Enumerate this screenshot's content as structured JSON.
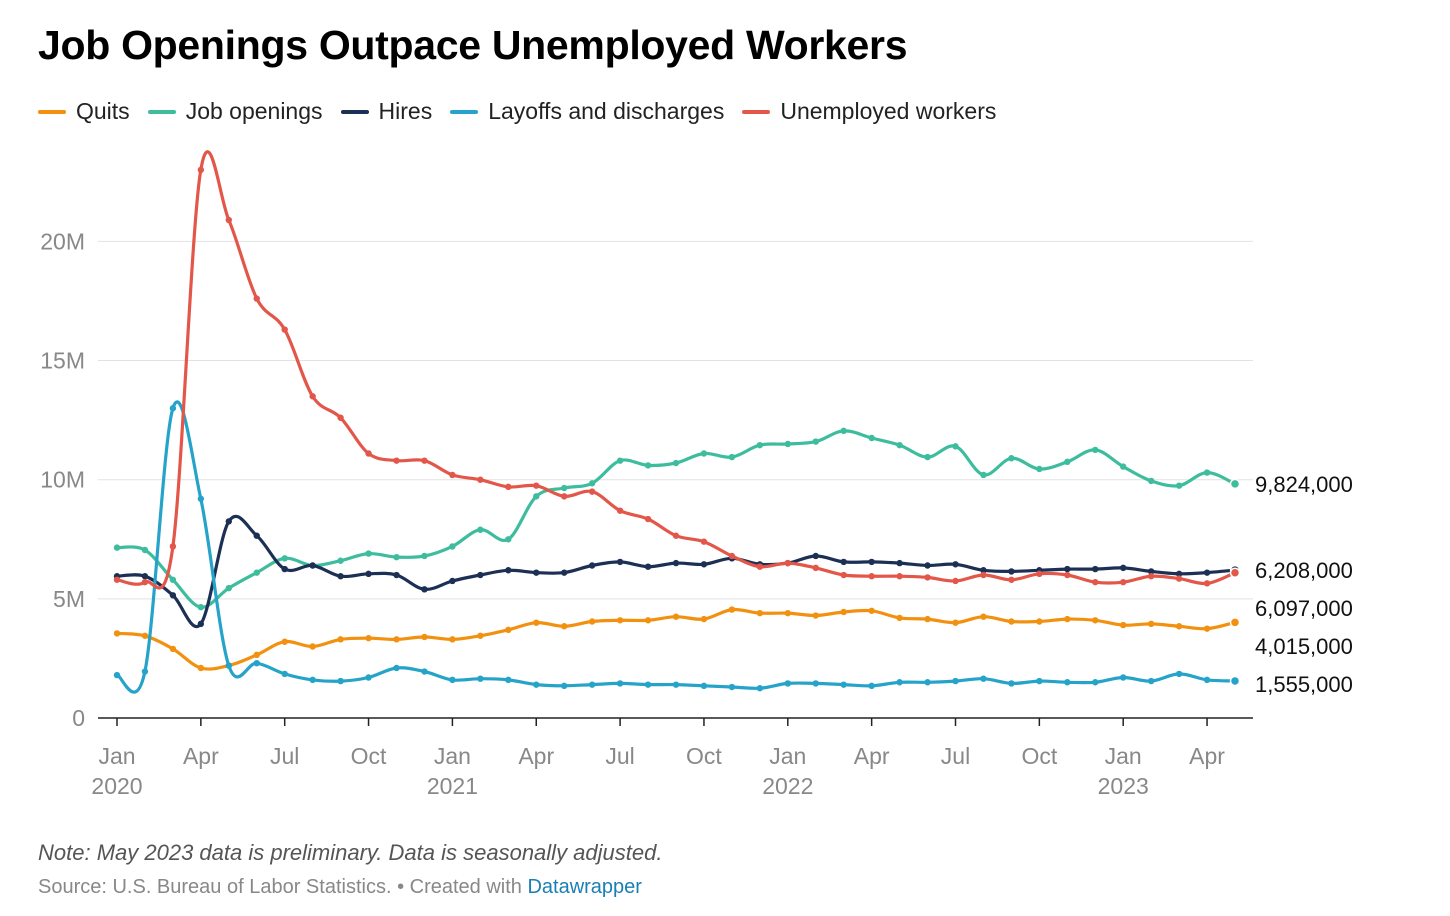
{
  "title": "Job Openings Outpace Unemployed Workers",
  "note": "Note: May 2023 data is preliminary. Data is seasonally adjusted.",
  "source": {
    "text": "Source: U.S. Bureau of Labor Statistics. • Created with ",
    "link": "Datawrapper"
  },
  "chart_data": {
    "type": "line",
    "title": "Job Openings Outpace Unemployed Workers",
    "x": [
      "2020-01",
      "2020-02",
      "2020-03",
      "2020-04",
      "2020-05",
      "2020-06",
      "2020-07",
      "2020-08",
      "2020-09",
      "2020-10",
      "2020-11",
      "2020-12",
      "2021-01",
      "2021-02",
      "2021-03",
      "2021-04",
      "2021-05",
      "2021-06",
      "2021-07",
      "2021-08",
      "2021-09",
      "2021-10",
      "2021-11",
      "2021-12",
      "2022-01",
      "2022-02",
      "2022-03",
      "2022-04",
      "2022-05",
      "2022-06",
      "2022-07",
      "2022-08",
      "2022-09",
      "2022-10",
      "2022-11",
      "2022-12",
      "2023-01",
      "2023-02",
      "2023-03",
      "2023-04",
      "2023-05"
    ],
    "x_tick_labels": [
      {
        "x": "2020-01",
        "label": "Jan",
        "year": "2020"
      },
      {
        "x": "2020-04",
        "label": "Apr",
        "year": ""
      },
      {
        "x": "2020-07",
        "label": "Jul",
        "year": ""
      },
      {
        "x": "2020-10",
        "label": "Oct",
        "year": ""
      },
      {
        "x": "2021-01",
        "label": "Jan",
        "year": "2021"
      },
      {
        "x": "2021-04",
        "label": "Apr",
        "year": ""
      },
      {
        "x": "2021-07",
        "label": "Jul",
        "year": ""
      },
      {
        "x": "2021-10",
        "label": "Oct",
        "year": ""
      },
      {
        "x": "2022-01",
        "label": "Jan",
        "year": "2022"
      },
      {
        "x": "2022-04",
        "label": "Apr",
        "year": ""
      },
      {
        "x": "2022-07",
        "label": "Jul",
        "year": ""
      },
      {
        "x": "2022-10",
        "label": "Oct",
        "year": ""
      },
      {
        "x": "2023-01",
        "label": "Jan",
        "year": "2023"
      },
      {
        "x": "2023-04",
        "label": "Apr",
        "year": ""
      }
    ],
    "y_ticks": [
      {
        "value": 0,
        "label": "0"
      },
      {
        "value": 5000000,
        "label": "5M"
      },
      {
        "value": 10000000,
        "label": "10M"
      },
      {
        "value": 15000000,
        "label": "15M"
      },
      {
        "value": 20000000,
        "label": "20M"
      }
    ],
    "ylim": [
      0,
      23500000
    ],
    "grid": true,
    "legend_position": "top-left",
    "series": [
      {
        "name": "Quits",
        "color": "#f2910f",
        "end_label": "4,015,000",
        "values": [
          3550000,
          3450000,
          2900000,
          2100000,
          2200000,
          2650000,
          3200000,
          3000000,
          3300000,
          3350000,
          3300000,
          3400000,
          3300000,
          3450000,
          3700000,
          4000000,
          3850000,
          4050000,
          4100000,
          4100000,
          4250000,
          4150000,
          4550000,
          4400000,
          4400000,
          4300000,
          4450000,
          4500000,
          4200000,
          4150000,
          4000000,
          4250000,
          4050000,
          4050000,
          4150000,
          4100000,
          3900000,
          3950000,
          3850000,
          3750000,
          4015000
        ]
      },
      {
        "name": "Job openings",
        "color": "#3dbd9d",
        "end_label": "9,824,000",
        "values": [
          7150000,
          7050000,
          5800000,
          4650000,
          5450000,
          6100000,
          6700000,
          6400000,
          6600000,
          6900000,
          6750000,
          6800000,
          7200000,
          7900000,
          7500000,
          9300000,
          9650000,
          9850000,
          10800000,
          10600000,
          10700000,
          11100000,
          10950000,
          11450000,
          11500000,
          11600000,
          12050000,
          11750000,
          11450000,
          10950000,
          11400000,
          10200000,
          10900000,
          10450000,
          10750000,
          11250000,
          10550000,
          9950000,
          9750000,
          10300000,
          9824000
        ]
      },
      {
        "name": "Hires",
        "color": "#1c2f54",
        "end_label": "6,208,000",
        "values": [
          5950000,
          5950000,
          5150000,
          3950000,
          8250000,
          7650000,
          6250000,
          6400000,
          5950000,
          6050000,
          6000000,
          5400000,
          5750000,
          6000000,
          6200000,
          6100000,
          6100000,
          6400000,
          6550000,
          6350000,
          6500000,
          6450000,
          6700000,
          6450000,
          6500000,
          6800000,
          6550000,
          6550000,
          6500000,
          6400000,
          6450000,
          6200000,
          6150000,
          6200000,
          6250000,
          6250000,
          6300000,
          6150000,
          6050000,
          6100000,
          6208000
        ]
      },
      {
        "name": "Layoffs and discharges",
        "color": "#26a3c9",
        "end_label": "1,555,000",
        "values": [
          1800000,
          1950000,
          13000000,
          9200000,
          2200000,
          2300000,
          1850000,
          1600000,
          1550000,
          1700000,
          2100000,
          1950000,
          1600000,
          1650000,
          1600000,
          1400000,
          1350000,
          1400000,
          1450000,
          1400000,
          1400000,
          1350000,
          1300000,
          1250000,
          1450000,
          1450000,
          1400000,
          1350000,
          1500000,
          1500000,
          1550000,
          1650000,
          1450000,
          1550000,
          1500000,
          1500000,
          1700000,
          1550000,
          1850000,
          1600000,
          1555000
        ]
      },
      {
        "name": "Unemployed workers",
        "color": "#e3574a",
        "end_label": "6,097,000",
        "values": [
          5800000,
          5700000,
          7200000,
          23000000,
          20900000,
          17600000,
          16300000,
          13500000,
          12600000,
          11100000,
          10800000,
          10800000,
          10200000,
          10000000,
          9700000,
          9750000,
          9300000,
          9500000,
          8700000,
          8350000,
          7650000,
          7400000,
          6800000,
          6350000,
          6500000,
          6300000,
          6000000,
          5950000,
          5950000,
          5900000,
          5750000,
          6000000,
          5800000,
          6050000,
          6000000,
          5700000,
          5700000,
          5950000,
          5850000,
          5650000,
          6097000
        ]
      }
    ],
    "end_label_order": [
      "Job openings",
      "Hires",
      "Unemployed workers",
      "Quits",
      "Layoffs and discharges"
    ]
  }
}
